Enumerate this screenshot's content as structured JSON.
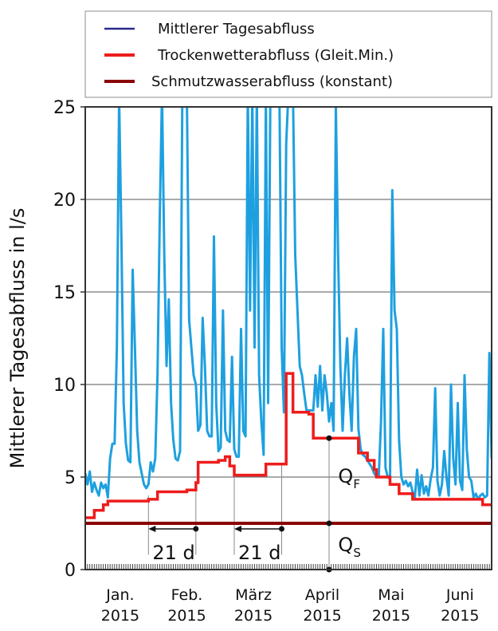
{
  "chart_data": {
    "type": "line",
    "ylabel": "Mittlerer Tagesabfluss in l/s",
    "ylim": [
      0,
      25
    ],
    "yticks": [
      "0",
      "5",
      "10",
      "15",
      "20",
      "25"
    ],
    "x_range": [
      "2015-01-01",
      "2015-06-30"
    ],
    "months": [
      {
        "label": "Jan.",
        "year": "2015"
      },
      {
        "label": "Feb.",
        "year": "2015"
      },
      {
        "label": "März",
        "year": "2015"
      },
      {
        "label": "April",
        "year": "2015"
      },
      {
        "label": "Mai",
        "year": "2015"
      },
      {
        "label": "Juni",
        "year": "2015"
      }
    ],
    "grid": "horizontal",
    "legend_position": "top",
    "series": [
      {
        "name": "Mittlerer Tagesabfluss",
        "color": "#1ea0e0",
        "points": [
          [
            "2015-01-01",
            5.2
          ],
          [
            "2015-01-02",
            4.6
          ],
          [
            "2015-01-03",
            5.3
          ],
          [
            "2015-01-04",
            4.2
          ],
          [
            "2015-01-05",
            4.7
          ],
          [
            "2015-01-06",
            4.3
          ],
          [
            "2015-01-07",
            4.0
          ],
          [
            "2015-01-08",
            4.7
          ],
          [
            "2015-01-09",
            4.4
          ],
          [
            "2015-01-10",
            4.6
          ],
          [
            "2015-01-11",
            3.9
          ],
          [
            "2015-01-12",
            6.0
          ],
          [
            "2015-01-13",
            6.8
          ],
          [
            "2015-01-14",
            6.8
          ],
          [
            "2015-01-15",
            12.0
          ],
          [
            "2015-01-16",
            25.5
          ],
          [
            "2015-01-17",
            18.0
          ],
          [
            "2015-01-18",
            9.0
          ],
          [
            "2015-01-19",
            6.8
          ],
          [
            "2015-01-20",
            5.9
          ],
          [
            "2015-01-21",
            5.8
          ],
          [
            "2015-01-22",
            16.2
          ],
          [
            "2015-01-23",
            12.0
          ],
          [
            "2015-01-24",
            7.5
          ],
          [
            "2015-01-25",
            5.8
          ],
          [
            "2015-01-26",
            5.2
          ],
          [
            "2015-01-27",
            4.6
          ],
          [
            "2015-01-28",
            4.4
          ],
          [
            "2015-01-29",
            4.6
          ],
          [
            "2015-01-30",
            5.8
          ],
          [
            "2015-01-31",
            5.3
          ],
          [
            "2015-02-01",
            6.0
          ],
          [
            "2015-02-02",
            10.5
          ],
          [
            "2015-02-03",
            19.0
          ],
          [
            "2015-02-04",
            25.8
          ],
          [
            "2015-02-05",
            17.0
          ],
          [
            "2015-02-06",
            11.0
          ],
          [
            "2015-02-07",
            14.6
          ],
          [
            "2015-02-08",
            9.0
          ],
          [
            "2015-02-09",
            7.0
          ],
          [
            "2015-02-10",
            6.0
          ],
          [
            "2015-02-11",
            5.9
          ],
          [
            "2015-02-12",
            6.4
          ],
          [
            "2015-02-13",
            25.8
          ],
          [
            "2015-02-14",
            25.8
          ],
          [
            "2015-02-15",
            25.8
          ],
          [
            "2015-02-16",
            13.5
          ],
          [
            "2015-02-17",
            12.0
          ],
          [
            "2015-02-18",
            10.5
          ],
          [
            "2015-02-19",
            10.0
          ],
          [
            "2015-02-20",
            7.5
          ],
          [
            "2015-02-21",
            7.8
          ],
          [
            "2015-02-22",
            13.6
          ],
          [
            "2015-02-23",
            11.0
          ],
          [
            "2015-02-24",
            7.5
          ],
          [
            "2015-02-25",
            7.2
          ],
          [
            "2015-02-26",
            7.2
          ],
          [
            "2015-02-27",
            18.0
          ],
          [
            "2015-02-28",
            9.0
          ],
          [
            "2015-03-01",
            6.4
          ],
          [
            "2015-03-02",
            6.6
          ],
          [
            "2015-03-03",
            14.0
          ],
          [
            "2015-03-04",
            7.5
          ],
          [
            "2015-03-05",
            7.0
          ],
          [
            "2015-03-06",
            6.9
          ],
          [
            "2015-03-07",
            11.5
          ],
          [
            "2015-03-08",
            6.5
          ],
          [
            "2015-03-09",
            6.1
          ],
          [
            "2015-03-10",
            6.1
          ],
          [
            "2015-03-11",
            13.0
          ],
          [
            "2015-03-12",
            7.5
          ],
          [
            "2015-03-13",
            7.2
          ],
          [
            "2015-03-14",
            25.8
          ],
          [
            "2015-03-15",
            14.0
          ],
          [
            "2015-03-16",
            25.8
          ],
          [
            "2015-03-17",
            12.0
          ],
          [
            "2015-03-18",
            25.8
          ],
          [
            "2015-03-19",
            10.5
          ],
          [
            "2015-03-20",
            8.0
          ],
          [
            "2015-03-21",
            6.2
          ],
          [
            "2015-03-22",
            25.5
          ],
          [
            "2015-03-23",
            9.0
          ],
          [
            "2015-03-24",
            25.8
          ],
          [
            "2015-03-25",
            25.8
          ],
          [
            "2015-03-26",
            25.8
          ],
          [
            "2015-03-27",
            25.8
          ],
          [
            "2015-03-28",
            25.8
          ],
          [
            "2015-03-29",
            12.0
          ],
          [
            "2015-03-30",
            8.5
          ],
          [
            "2015-03-31",
            23.0
          ],
          [
            "2015-04-01",
            25.8
          ],
          [
            "2015-04-02",
            25.8
          ],
          [
            "2015-04-03",
            25.8
          ],
          [
            "2015-04-04",
            17.0
          ],
          [
            "2015-04-05",
            14.0
          ],
          [
            "2015-04-06",
            11.0
          ],
          [
            "2015-04-07",
            10.5
          ],
          [
            "2015-04-08",
            9.5
          ],
          [
            "2015-04-09",
            8.6
          ],
          [
            "2015-04-10",
            8.6
          ],
          [
            "2015-04-11",
            8.6
          ],
          [
            "2015-04-12",
            8.6
          ],
          [
            "2015-04-13",
            10.5
          ],
          [
            "2015-04-14",
            8.8
          ],
          [
            "2015-04-15",
            11.0
          ],
          [
            "2015-04-16",
            8.6
          ],
          [
            "2015-04-17",
            10.5
          ],
          [
            "2015-04-18",
            9.5
          ],
          [
            "2015-04-19",
            8.0
          ],
          [
            "2015-04-20",
            9.0
          ],
          [
            "2015-04-21",
            7.5
          ],
          [
            "2015-04-22",
            25.0
          ],
          [
            "2015-04-23",
            17.0
          ],
          [
            "2015-04-24",
            11.0
          ],
          [
            "2015-04-25",
            7.5
          ],
          [
            "2015-04-26",
            10.5
          ],
          [
            "2015-04-27",
            12.5
          ],
          [
            "2015-04-28",
            9.5
          ],
          [
            "2015-04-29",
            7.5
          ],
          [
            "2015-04-30",
            11.5
          ],
          [
            "2015-05-01",
            13.0
          ],
          [
            "2015-05-02",
            7.6
          ],
          [
            "2015-05-03",
            6.5
          ],
          [
            "2015-05-04",
            6.2
          ],
          [
            "2015-05-05",
            6.1
          ],
          [
            "2015-05-06",
            5.9
          ],
          [
            "2015-05-07",
            5.7
          ],
          [
            "2015-05-08",
            5.5
          ],
          [
            "2015-05-09",
            5.2
          ],
          [
            "2015-05-10",
            5.0
          ],
          [
            "2015-05-11",
            5.0
          ],
          [
            "2015-05-12",
            8.0
          ],
          [
            "2015-05-13",
            13.0
          ],
          [
            "2015-05-14",
            5.5
          ],
          [
            "2015-05-15",
            5.0
          ],
          [
            "2015-05-16",
            4.9
          ],
          [
            "2015-05-17",
            20.5
          ],
          [
            "2015-05-18",
            14.0
          ],
          [
            "2015-05-19",
            13.0
          ],
          [
            "2015-05-20",
            7.0
          ],
          [
            "2015-05-21",
            5.0
          ],
          [
            "2015-05-22",
            4.6
          ],
          [
            "2015-05-23",
            4.8
          ],
          [
            "2015-05-24",
            4.5
          ],
          [
            "2015-05-25",
            4.7
          ],
          [
            "2015-05-26",
            4.2
          ],
          [
            "2015-05-27",
            3.9
          ],
          [
            "2015-05-28",
            5.4
          ],
          [
            "2015-05-29",
            4.0
          ],
          [
            "2015-05-30",
            5.1
          ],
          [
            "2015-05-31",
            4.1
          ],
          [
            "2015-06-01",
            4.5
          ],
          [
            "2015-06-02",
            4.0
          ],
          [
            "2015-06-03",
            4.9
          ],
          [
            "2015-06-04",
            5.5
          ],
          [
            "2015-06-05",
            9.8
          ],
          [
            "2015-06-06",
            4.8
          ],
          [
            "2015-06-07",
            4.0
          ],
          [
            "2015-06-08",
            4.6
          ],
          [
            "2015-06-09",
            6.4
          ],
          [
            "2015-06-10",
            5.0
          ],
          [
            "2015-06-11",
            4.0
          ],
          [
            "2015-06-12",
            10.0
          ],
          [
            "2015-06-13",
            6.0
          ],
          [
            "2015-06-14",
            4.6
          ],
          [
            "2015-06-15",
            9.0
          ],
          [
            "2015-06-16",
            4.8
          ],
          [
            "2015-06-17",
            4.3
          ],
          [
            "2015-06-18",
            10.5
          ],
          [
            "2015-06-19",
            6.5
          ],
          [
            "2015-06-20",
            5.0
          ],
          [
            "2015-06-21",
            4.8
          ],
          [
            "2015-06-22",
            3.9
          ],
          [
            "2015-06-23",
            4.1
          ],
          [
            "2015-06-24",
            3.8
          ],
          [
            "2015-06-25",
            4.0
          ],
          [
            "2015-06-26",
            4.1
          ],
          [
            "2015-06-27",
            3.9
          ],
          [
            "2015-06-28",
            4.0
          ],
          [
            "2015-06-29",
            11.7
          ],
          [
            "2015-06-30",
            6.0
          ]
        ]
      },
      {
        "name": "Trockenwetterabfluss (Gleit.Min.)",
        "color": "#ee1c1c",
        "step": true,
        "points": [
          [
            "2015-01-01",
            2.8
          ],
          [
            "2015-01-05",
            3.2
          ],
          [
            "2015-01-09",
            3.5
          ],
          [
            "2015-01-11",
            3.7
          ],
          [
            "2015-01-29",
            3.8
          ],
          [
            "2015-02-02",
            4.2
          ],
          [
            "2015-02-15",
            4.3
          ],
          [
            "2015-02-19",
            4.7
          ],
          [
            "2015-02-20",
            5.8
          ],
          [
            "2015-03-01",
            5.9
          ],
          [
            "2015-03-04",
            6.1
          ],
          [
            "2015-03-06",
            5.6
          ],
          [
            "2015-03-08",
            5.1
          ],
          [
            "2015-03-22",
            5.7
          ],
          [
            "2015-03-31",
            10.6
          ],
          [
            "2015-04-03",
            8.5
          ],
          [
            "2015-04-10",
            8.4
          ],
          [
            "2015-04-12",
            7.1
          ],
          [
            "2015-05-02",
            6.3
          ],
          [
            "2015-05-06",
            5.9
          ],
          [
            "2015-05-09",
            5.4
          ],
          [
            "2015-05-10",
            5.0
          ],
          [
            "2015-05-16",
            4.6
          ],
          [
            "2015-05-20",
            4.1
          ],
          [
            "2015-05-26",
            3.8
          ],
          [
            "2015-06-26",
            3.5
          ],
          [
            "2015-06-30",
            3.5
          ]
        ]
      },
      {
        "name": "Schmutzwasserabfluss (konstant)",
        "color": "#8b0000",
        "constant": 2.5
      }
    ],
    "annotations": [
      {
        "text": "21 d",
        "from": "2015-01-29",
        "to": "2015-02-19",
        "y": 2.2
      },
      {
        "text": "21 d",
        "from": "2015-03-08",
        "to": "2015-03-29",
        "y": 2.2
      },
      {
        "text": "Q",
        "sub": "F",
        "x": "2015-04-23",
        "y": 4.7
      },
      {
        "text": "Q",
        "sub": "S",
        "x": "2015-04-23",
        "y": 1.0
      }
    ],
    "markers": [
      {
        "x": "2015-04-19",
        "y": 7.1
      },
      {
        "x": "2015-04-19",
        "y": 2.5
      },
      {
        "x": "2015-04-19",
        "y": 0
      },
      {
        "x": "2015-02-19",
        "y": 2.2
      },
      {
        "x": "2015-03-29",
        "y": 2.2
      }
    ],
    "guides": [
      {
        "x": "2015-01-29",
        "y": [
          0.8,
          4.0
        ]
      },
      {
        "x": "2015-02-19",
        "y": [
          0.8,
          4.7
        ]
      },
      {
        "x": "2015-03-08",
        "y": [
          0.8,
          5.1
        ]
      },
      {
        "x": "2015-03-29",
        "y": [
          0.8,
          5.7
        ]
      },
      {
        "x": "2015-04-19",
        "y": [
          0,
          7.1
        ]
      }
    ]
  }
}
